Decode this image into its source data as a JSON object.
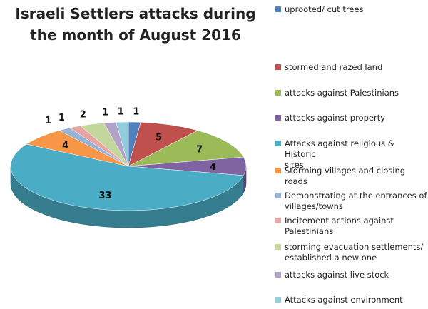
{
  "chart_data": {
    "type": "pie",
    "variant": "3d-pie",
    "title": "Israeli Settlers attacks during the month of August 2016",
    "legend_position": "right",
    "categories": [
      "uprooted/ cut trees",
      "stormed and razed land",
      "attacks against Palestinians",
      "attacks against property",
      "Attacks against religious & Historic sites",
      "Storming villages and closing roads",
      "Demonstrating at the entrances of villages/towns",
      "Incitement actions against Palestinians",
      "storming evacuation settlements/ established a new one",
      "attacks against live stock",
      "Attacks against environment"
    ],
    "legend_lines": [
      [
        "uprooted/ cut trees"
      ],
      [
        "stormed and razed land"
      ],
      [
        "attacks against Palestinians"
      ],
      [
        "attacks against property"
      ],
      [
        "Attacks against religious & Historic",
        "sites"
      ],
      [
        "Storming villages and closing roads"
      ],
      [
        "Demonstrating at the entrances of",
        "villages/towns"
      ],
      [
        "Incitement actions against",
        "Palestinians"
      ],
      [
        "storming evacuation settlements/",
        "established a new one"
      ],
      [
        "attacks against live stock"
      ],
      [
        "Attacks against environment"
      ]
    ],
    "values": [
      1,
      5,
      7,
      4,
      33,
      4,
      1,
      1,
      2,
      1,
      1
    ],
    "data_labels": [
      "1",
      "5",
      "7",
      "4",
      "33",
      "4",
      "1",
      "1",
      "2",
      "1",
      "1"
    ],
    "colors": [
      "#4f81bd",
      "#c0504d",
      "#9bbb59",
      "#8064a2",
      "#4bacc6",
      "#f79646",
      "#95b3d7",
      "#e6a5a4",
      "#c3d69b",
      "#b3a2c7",
      "#93cddd"
    ]
  }
}
